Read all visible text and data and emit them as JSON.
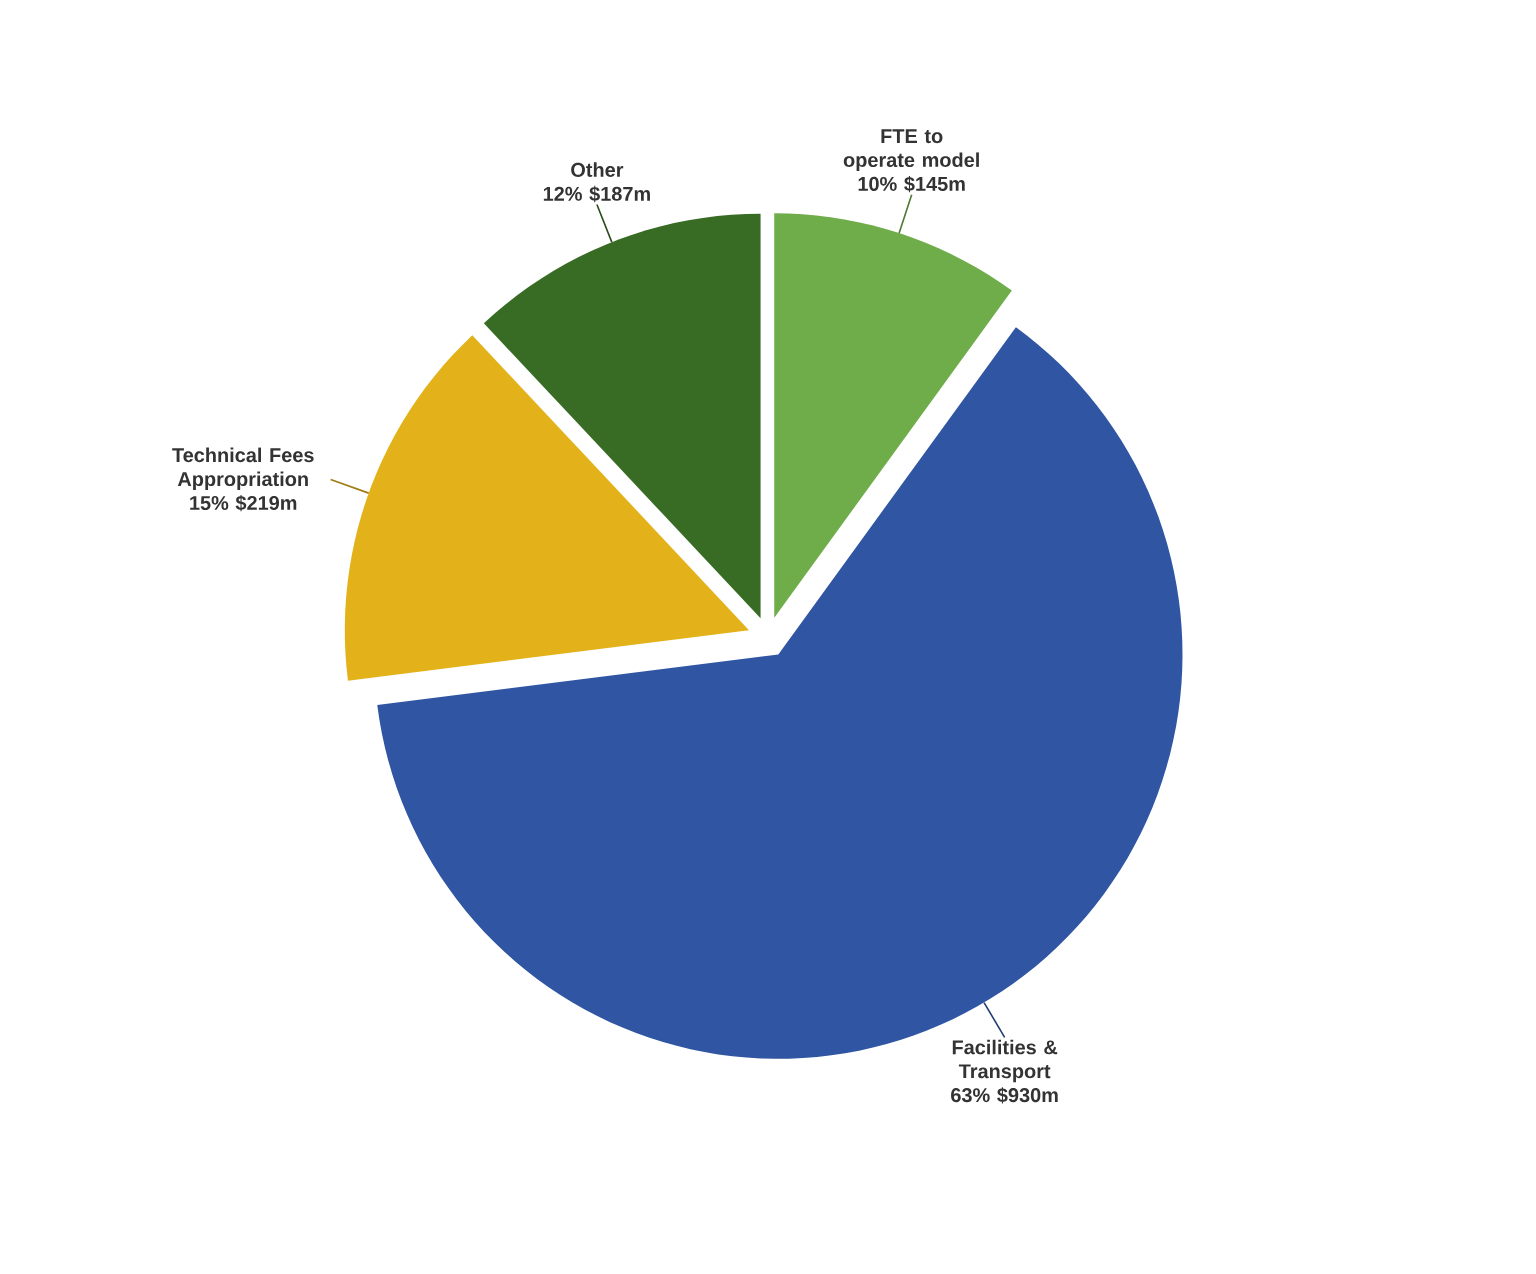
{
  "chart_data": {
    "type": "pie",
    "categories": [
      "FTE to operate model",
      "Facilities & Transport",
      "Technical Fees Appropriation",
      "Other"
    ],
    "values": [
      10,
      63,
      15,
      12
    ],
    "value_labels": [
      "10% $145m",
      "63% $930m",
      "15% $219m",
      "12% $187m"
    ],
    "colors": [
      "#6fac4a",
      "#2f55a3",
      "#e3b21b",
      "#386b24"
    ]
  }
}
